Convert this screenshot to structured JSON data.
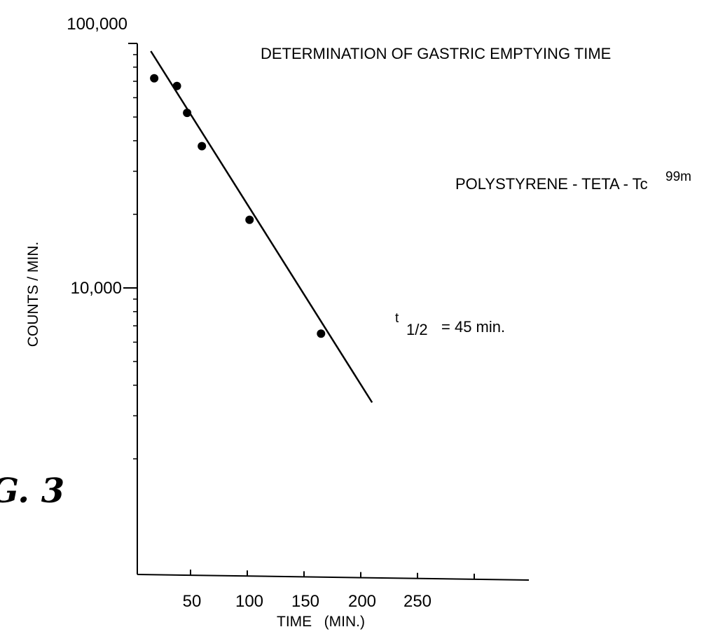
{
  "chart_data": {
    "type": "scatter",
    "title": "DETERMINATION OF GASTRIC EMPTYING TIME",
    "subtitle": "POLYSTYRENE - TETA - Tc",
    "subtitle_superscript": "99m",
    "annotation": {
      "t_symbol": "t",
      "fraction": "1/2",
      "text": "= 45 min."
    },
    "figure_label": "G. 3",
    "xlabel": "TIME   (MIN.)",
    "ylabel": "COUNTS / MIN.",
    "x_ticklabels": [
      "50",
      "100",
      "150",
      "200",
      "250"
    ],
    "y_ticklabels": [
      "100,000",
      "10,000"
    ],
    "y_scale": "log",
    "xlim": [
      0,
      350
    ],
    "ylim": [
      1500,
      100000
    ],
    "grid": false,
    "series": [
      {
        "points": [
          {
            "x": 18,
            "y": 72000
          },
          {
            "x": 38,
            "y": 67000
          },
          {
            "x": 47,
            "y": 52000
          },
          {
            "x": 60,
            "y": 38000
          },
          {
            "x": 102,
            "y": 19000
          },
          {
            "x": 165,
            "y": 6500
          }
        ]
      }
    ],
    "fit_line": {
      "x": [
        15,
        210
      ],
      "y": [
        93000,
        3400
      ]
    }
  }
}
